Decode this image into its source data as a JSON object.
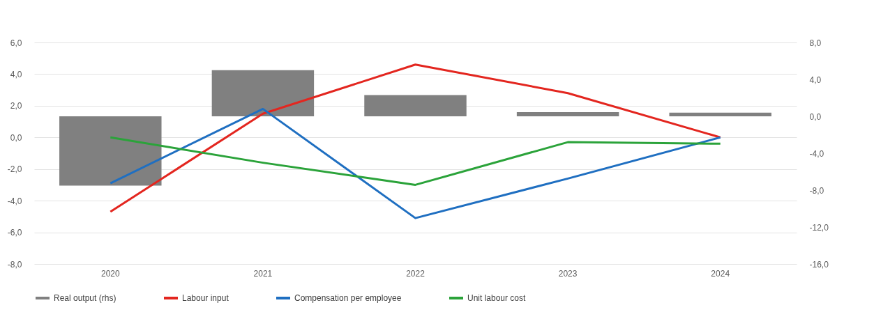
{
  "chart_data": {
    "type": "line",
    "categories": [
      "2020",
      "2021",
      "2022",
      "2023",
      "2024"
    ],
    "series": [
      {
        "name": "Real output (rhs)",
        "type": "bar",
        "axis": "y2",
        "color": "#808080",
        "values": [
          -7.5,
          5.0,
          2.3,
          0.45,
          0.4
        ]
      },
      {
        "name": "Labour input",
        "color": "#e3261f",
        "values": [
          -4.7,
          1.5,
          4.6,
          2.8,
          0.0
        ]
      },
      {
        "name": "Compensation per employee",
        "color": "#1f6fc1",
        "values": [
          -2.9,
          1.8,
          -5.1,
          -2.6,
          0.0
        ]
      },
      {
        "name": "Unit labour cost",
        "color": "#2ba33a",
        "values": [
          0.0,
          -1.6,
          -3.0,
          -0.3,
          -0.4
        ]
      }
    ],
    "ylim": [
      -8,
      6
    ],
    "yticks": [
      {
        "value": -8,
        "label": "-8,0"
      },
      {
        "value": -6,
        "label": "-6,0"
      },
      {
        "value": -4,
        "label": "-4,0"
      },
      {
        "value": -2,
        "label": "-2,0"
      },
      {
        "value": 0,
        "label": "0,0"
      },
      {
        "value": 2,
        "label": "2,0"
      },
      {
        "value": 4,
        "label": "4,0"
      },
      {
        "value": 6,
        "label": "6,0"
      }
    ],
    "y2lim": [
      -16,
      8
    ],
    "y2ticks": [
      {
        "value": -16,
        "label": "-16,0"
      },
      {
        "value": -12,
        "label": "-12,0"
      },
      {
        "value": -8,
        "label": "-8,0"
      },
      {
        "value": -4,
        "label": "-4,0"
      },
      {
        "value": 0,
        "label": "0,0"
      },
      {
        "value": 4,
        "label": "4,0"
      },
      {
        "value": 8,
        "label": "8,0"
      }
    ],
    "grid": "y",
    "legend": "bottom",
    "line_style": "solid",
    "marker": "none"
  }
}
